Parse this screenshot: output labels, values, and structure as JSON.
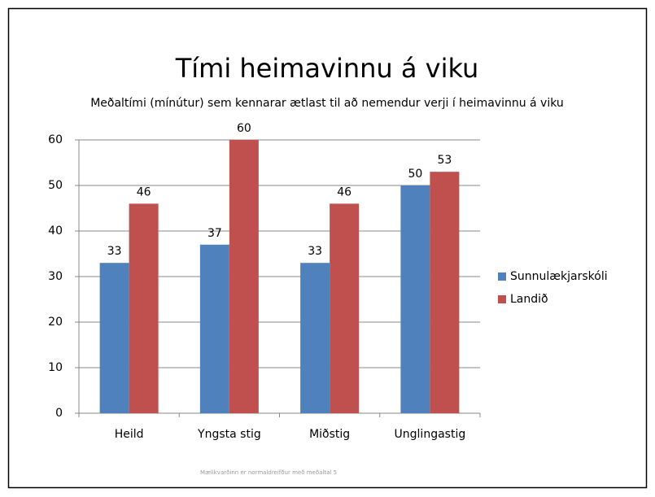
{
  "chart_data": {
    "type": "bar",
    "title": "Tími heimavinnu á viku",
    "subtitle": "Meðaltími (mínútur) sem kennarar ætlast til að nemendur verji í heimavinnu á viku",
    "note": "Mælikvarðinn er normaldreifður með meðaltal 5",
    "categories": [
      "Heild",
      "Yngsta stig",
      "Miðstig",
      "Unglingastig"
    ],
    "series": [
      {
        "name": "Sunnulækjarskóli",
        "color": "#4f81bd",
        "values": [
          33,
          37,
          33,
          50
        ]
      },
      {
        "name": "Landið",
        "color": "#c0504d",
        "values": [
          46,
          60,
          46,
          53
        ]
      }
    ],
    "ylim": [
      0,
      60
    ],
    "yticks": [
      0,
      10,
      20,
      30,
      40,
      50,
      60
    ],
    "grid": true,
    "legend": "right"
  }
}
